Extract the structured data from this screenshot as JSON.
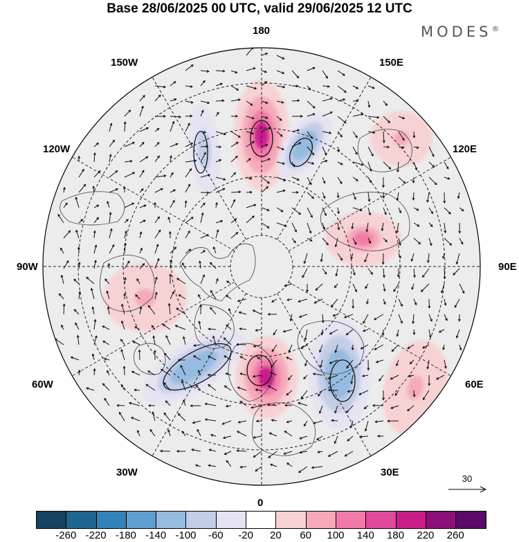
{
  "title": "Base 28/06/2025 00 UTC, valid 29/06/2025 12 UTC",
  "brand": "MODES",
  "brand_mark": "®",
  "longitude_labels": {
    "top": "180",
    "bottom": "0",
    "left": "90W",
    "right": "90E",
    "upper_left": "150W",
    "upper_right": "150E",
    "mid_left": "120W",
    "mid_right": "120E",
    "lower_left": "60W",
    "lower_right": "60E",
    "bottom_left": "30W",
    "bottom_right": "30E"
  },
  "vector_scale": {
    "label": "30"
  },
  "colorbar": {
    "colors": [
      "#17425f",
      "#1f6790",
      "#3283b9",
      "#5f9fd0",
      "#95bbe0",
      "#c3cde8",
      "#e6e3f3",
      "#ffffff",
      "#f7d2d4",
      "#f5a9b9",
      "#f27aa9",
      "#e14a9b",
      "#c91e8a",
      "#8c1077",
      "#5b0a6a"
    ],
    "ticks": [
      "-260",
      "-220",
      "-180",
      "-140",
      "-100",
      "-60",
      "-20",
      "20",
      "60",
      "100",
      "140",
      "180",
      "220",
      "260"
    ]
  },
  "map": {
    "projection": "north-polar-stereographic",
    "anomaly_features": [
      {
        "sign": "positive",
        "value": 180
      },
      {
        "sign": "negative",
        "value": -140
      },
      {
        "sign": "negative",
        "value": -100
      },
      {
        "sign": "positive",
        "value": 100
      },
      {
        "sign": "positive",
        "value": 60
      },
      {
        "sign": "negative",
        "value": -140
      },
      {
        "sign": "positive",
        "value": 180
      },
      {
        "sign": "negative",
        "value": -140
      },
      {
        "sign": "positive",
        "value": 60
      },
      {
        "sign": "positive",
        "value": 60
      }
    ]
  }
}
